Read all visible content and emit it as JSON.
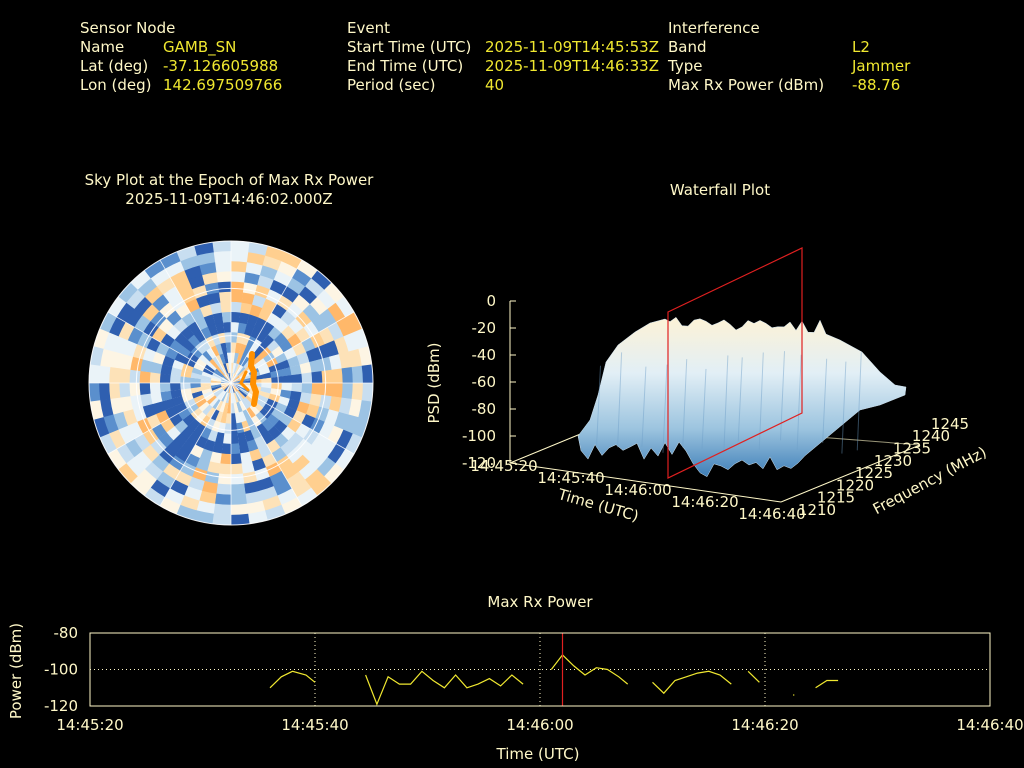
{
  "header": {
    "sensor": {
      "heading": "Sensor Node",
      "rows": [
        {
          "label": "Name",
          "value": "GAMB_SN"
        },
        {
          "label": "Lat (deg)",
          "value": "-37.126605988"
        },
        {
          "label": "Lon (deg)",
          "value": "142.697509766"
        }
      ]
    },
    "event": {
      "heading": "Event",
      "rows": [
        {
          "label": "Start Time (UTC)",
          "value": "2025-11-09T14:45:53Z"
        },
        {
          "label": "End Time (UTC)",
          "value": "2025-11-09T14:46:33Z"
        },
        {
          "label": "Period (sec)",
          "value": "40"
        }
      ]
    },
    "interference": {
      "heading": "Interference",
      "rows": [
        {
          "label": "Band",
          "value": "L2"
        },
        {
          "label": "Type",
          "value": "Jammer"
        },
        {
          "label": "Max Rx Power (dBm)",
          "value": "-88.76"
        }
      ]
    }
  },
  "sky_plot": {
    "title": "Sky Plot at the Epoch of Max Rx Power",
    "subtitle": "2025-11-09T14:46:02.000Z"
  },
  "waterfall": {
    "title": "Waterfall Plot",
    "zlabel": "PSD (dBm)",
    "xlabel": "Time (UTC)",
    "ylabel": "Frequency (MHz)",
    "z_ticks": [
      "0",
      "-20",
      "-40",
      "-60",
      "-80",
      "-100",
      "-120"
    ],
    "x_ticks": [
      "14:45:20",
      "14:45:40",
      "14:46:00",
      "14:46:20",
      "14:46:40"
    ],
    "y_ticks": [
      "1210",
      "1215",
      "1220",
      "1225",
      "1230",
      "1235",
      "1240",
      "1245"
    ]
  },
  "colors": {
    "text": "#fff8c8",
    "value": "#f0e830",
    "line": "#f0e830",
    "marker": "#e02020",
    "grid": "#fff8c8",
    "sky_cool": "#2f5fb0",
    "sky_warm": "#ffb060",
    "sky_track": "#ff9000"
  },
  "chart_data": {
    "type": "line",
    "title": "Max Rx Power",
    "xlabel": "Time (UTC)",
    "ylabel": "Power (dBm)",
    "x_ticks": [
      "14:45:20",
      "14:45:40",
      "14:46:00",
      "14:46:20",
      "14:46:40"
    ],
    "y_ticks": [
      "-80",
      "-100",
      "-120"
    ],
    "ylim": [
      -120,
      -80
    ],
    "xlim_sec": [
      0,
      80
    ],
    "grid": true,
    "marker_time": "14:46:02",
    "series": [
      {
        "segments": [
          [
            [
              16.0,
              -110
            ],
            [
              17.0,
              -104
            ],
            [
              18.0,
              -101
            ],
            [
              19.2,
              -103
            ],
            [
              20.0,
              -107
            ]
          ],
          [
            [
              24.5,
              -103
            ],
            [
              25.5,
              -119
            ],
            [
              26.5,
              -104
            ],
            [
              27.5,
              -108
            ],
            [
              28.5,
              -108
            ],
            [
              29.5,
              -101
            ],
            [
              30.5,
              -106
            ],
            [
              31.5,
              -110
            ],
            [
              32.5,
              -103
            ],
            [
              33.5,
              -110
            ],
            [
              34.5,
              -108
            ],
            [
              35.5,
              -105
            ],
            [
              36.5,
              -109
            ],
            [
              37.5,
              -103
            ],
            [
              38.5,
              -108
            ]
          ],
          [
            [
              41.0,
              -100
            ],
            [
              42.0,
              -92
            ],
            [
              43.0,
              -98
            ],
            [
              44.0,
              -103
            ],
            [
              45.0,
              -99
            ],
            [
              46.0,
              -100
            ],
            [
              47.0,
              -104
            ],
            [
              47.8,
              -108
            ]
          ],
          [
            [
              50.0,
              -107
            ],
            [
              51.0,
              -113
            ],
            [
              52.0,
              -106
            ],
            [
              53.0,
              -104
            ],
            [
              54.0,
              -102
            ],
            [
              55.0,
              -101
            ],
            [
              56.0,
              -103
            ],
            [
              57.0,
              -108
            ]
          ],
          [
            [
              58.5,
              -101
            ],
            [
              59.5,
              -107
            ]
          ],
          [
            [
              62.5,
              -114
            ],
            [
              62.6,
              -114
            ]
          ],
          [
            [
              64.5,
              -110
            ],
            [
              65.5,
              -106
            ],
            [
              66.5,
              -106
            ]
          ]
        ]
      }
    ]
  }
}
